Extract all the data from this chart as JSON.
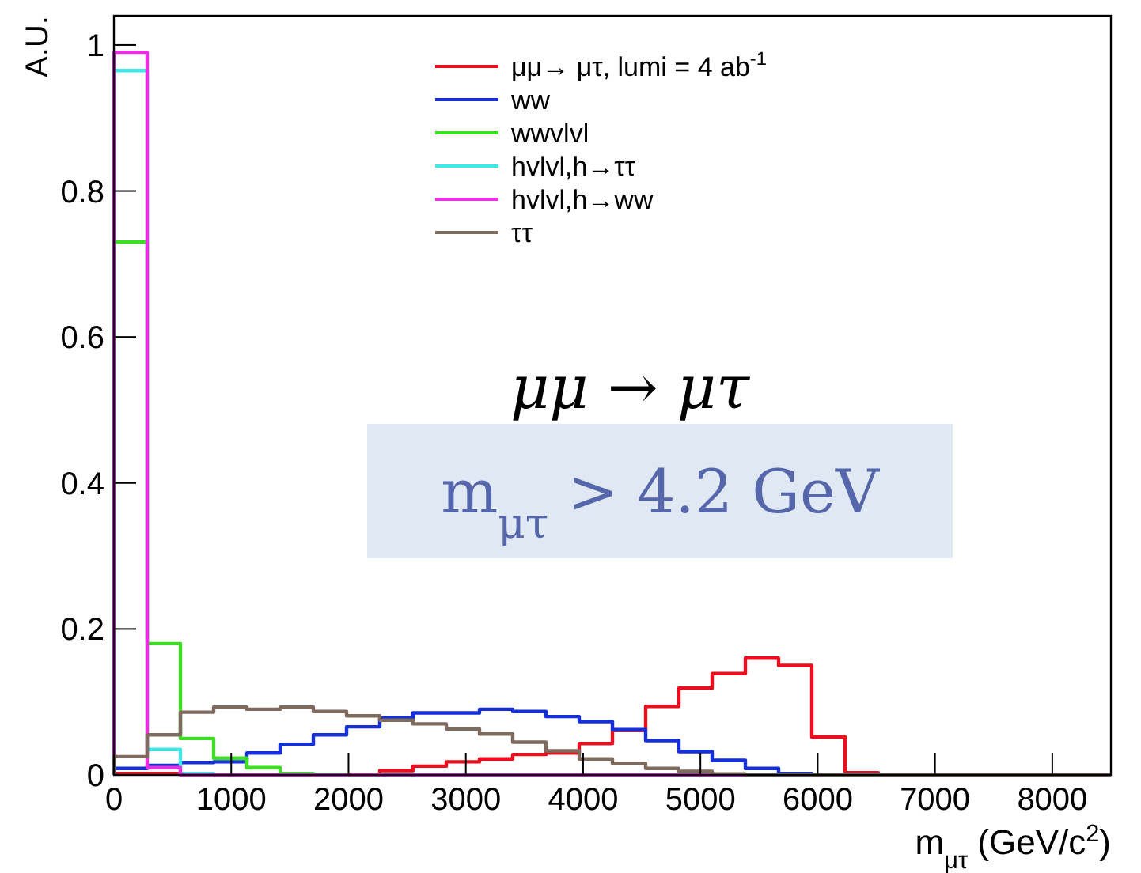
{
  "chart_data": {
    "type": "histogram",
    "bins": [
      0,
      283.33,
      566.67,
      850,
      1133.33,
      1416.67,
      1700,
      1983.33,
      2266.67,
      2550,
      2833.33,
      3116.67,
      3400,
      3683.33,
      3966.67,
      4250,
      4533.33,
      4816.67,
      5100,
      5383.33,
      5666.67,
      5950,
      6233.33,
      6516.67,
      6800,
      7083.33,
      7366.67,
      7650,
      7933.33,
      8216.67,
      8500
    ],
    "series": [
      {
        "name": "μμ→ μτ, lumi = 4 ab$^{-1}$",
        "color": "#e8101f",
        "values": [
          0.002,
          0.002,
          0.001,
          0,
          0,
          0,
          0,
          0.001,
          0.006,
          0.012,
          0.018,
          0.022,
          0.028,
          0.03,
          0.043,
          0.061,
          0.094,
          0.119,
          0.139,
          0.16,
          0.15,
          0.052,
          0.003,
          0,
          0,
          0,
          0,
          0,
          0,
          0
        ]
      },
      {
        "name": "ww",
        "color": "#1530d8",
        "values": [
          0.009,
          0.013,
          0.017,
          0.018,
          0.03,
          0.042,
          0.055,
          0.066,
          0.078,
          0.085,
          0.085,
          0.09,
          0.087,
          0.08,
          0.073,
          0.062,
          0.047,
          0.032,
          0.02,
          0.009,
          0.002,
          0,
          0,
          0,
          0,
          0,
          0,
          0,
          0,
          0
        ]
      },
      {
        "name": "wwvlvl",
        "color": "#3de020",
        "values": [
          0.73,
          0.18,
          0.05,
          0.023,
          0.01,
          0.002,
          0.001,
          0,
          0,
          0,
          0,
          0,
          0,
          0,
          0,
          0,
          0,
          0,
          0,
          0,
          0,
          0,
          0,
          0,
          0,
          0,
          0,
          0,
          0,
          0
        ]
      },
      {
        "name": "hvlvl,h→ττ",
        "color": "#40e8e8",
        "values": [
          0.965,
          0.035,
          0.002,
          0,
          0,
          0,
          0,
          0,
          0,
          0,
          0,
          0,
          0,
          0,
          0,
          0,
          0,
          0,
          0,
          0,
          0,
          0,
          0,
          0,
          0,
          0,
          0,
          0,
          0,
          0
        ]
      },
      {
        "name": "hvlvl,h→ww",
        "color": "#e830e0",
        "values": [
          0.99,
          0.01,
          0,
          0,
          0,
          0,
          0,
          0,
          0,
          0,
          0,
          0,
          0,
          0,
          0,
          0,
          0,
          0,
          0,
          0,
          0,
          0,
          0,
          0,
          0,
          0,
          0,
          0,
          0,
          0
        ]
      },
      {
        "name": "ττ",
        "color": "#7f6a5e",
        "values": [
          0.025,
          0.055,
          0.086,
          0.093,
          0.09,
          0.093,
          0.087,
          0.081,
          0.075,
          0.07,
          0.063,
          0.056,
          0.045,
          0.033,
          0.022,
          0.016,
          0.009,
          0.005,
          0.0015,
          0,
          0,
          0,
          0,
          0,
          0,
          0,
          0,
          0,
          0,
          0
        ]
      }
    ],
    "xlim": [
      0,
      8500
    ],
    "xticks": [
      0,
      1000,
      2000,
      3000,
      4000,
      5000,
      6000,
      7000,
      8000
    ],
    "ylim": [
      0,
      1.04
    ],
    "yticks": [
      0,
      0.2,
      0.4,
      0.6,
      0.8,
      1
    ],
    "xlabel": "m$_{μτ}$ (GeV/c$^{2}$)",
    "ylabel": "A.U.",
    "legend": "top right",
    "grid": false,
    "annotations": [
      "μμ → μτ",
      "m$_{μτ}$ > 4.2 GeV"
    ]
  }
}
